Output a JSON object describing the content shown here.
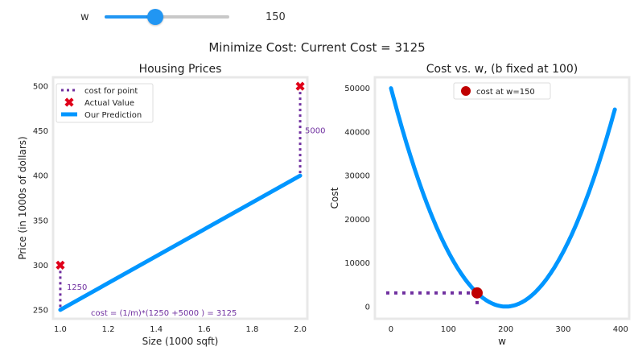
{
  "slider": {
    "label": "w",
    "value": 150,
    "min": 0,
    "max": 400
  },
  "suptitle": "Minimize Cost: Current Cost = 3125",
  "colors": {
    "blue": "#0096ff",
    "purple": "#7030a0",
    "red": "#c00000",
    "marker_red": "#e0001a"
  },
  "chart_data": [
    {
      "type": "line",
      "title": "Housing Prices",
      "xlabel": "Size (1000 sqft)",
      "ylabel": "Price (in 1000s of dollars)",
      "xlim": [
        0.97,
        2.03
      ],
      "ylim": [
        240,
        510
      ],
      "xticks": [
        "1.0",
        "1.2",
        "1.4",
        "1.6",
        "1.8",
        "2.0"
      ],
      "xtick_values": [
        1.0,
        1.2,
        1.4,
        1.6,
        1.8,
        2.0
      ],
      "yticks": [
        "250",
        "300",
        "350",
        "400",
        "450",
        "500"
      ],
      "ytick_values": [
        250,
        300,
        350,
        400,
        450,
        500
      ],
      "actual": {
        "name": "Actual Value",
        "x": [
          1.0,
          2.0
        ],
        "y": [
          300,
          500
        ]
      },
      "prediction": {
        "name": "Our Prediction",
        "x": [
          1.0,
          2.0
        ],
        "y": [
          250,
          400
        ]
      },
      "cost_lines": {
        "name": "cost for point",
        "labels": [
          "1250",
          "5000"
        ]
      },
      "annotation": "cost = (1/m)*(1250 +5000 ) = 3125",
      "legend_position": "top-left"
    },
    {
      "type": "line",
      "title": "Cost vs. w, (b fixed at 100)",
      "xlabel": "w",
      "ylabel": "Cost",
      "xlim": [
        -28,
        415
      ],
      "ylim": [
        -2800,
        52500
      ],
      "xticks": [
        "0",
        "100",
        "200",
        "300",
        "400"
      ],
      "xtick_values": [
        0,
        100,
        200,
        300,
        400
      ],
      "yticks": [
        "0",
        "10000",
        "20000",
        "30000",
        "40000",
        "50000"
      ],
      "ytick_values": [
        0,
        10000,
        20000,
        30000,
        40000,
        50000
      ],
      "curve": {
        "w_start": 0,
        "w_end": 390,
        "min_w": 200,
        "min_cost": 0,
        "cost_at_0": 50000
      },
      "point": {
        "name": "cost at w=150",
        "x": 150,
        "y": 3125
      },
      "legend_position": "top-center"
    }
  ]
}
